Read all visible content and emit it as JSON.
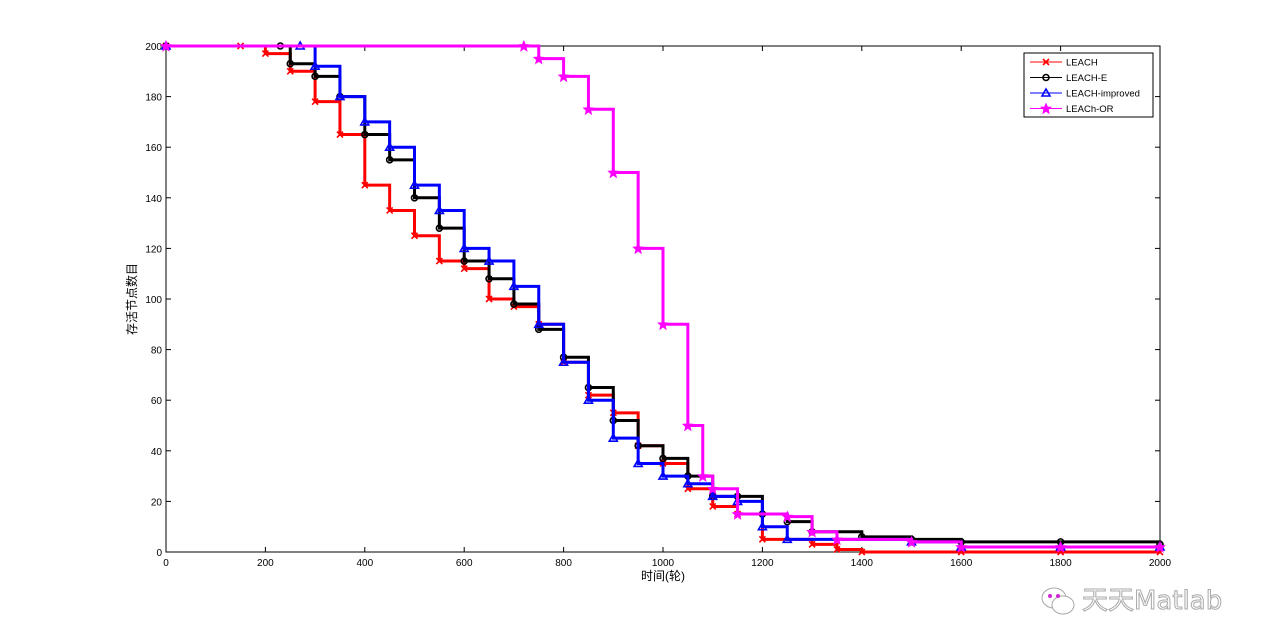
{
  "chart_data": {
    "type": "line",
    "title": "",
    "xlabel": "时间(轮)",
    "ylabel": "存活节点数目",
    "xlim": [
      0,
      2000
    ],
    "ylim": [
      0,
      200
    ],
    "xticks": [
      0,
      200,
      400,
      600,
      800,
      1000,
      1200,
      1400,
      1600,
      1800,
      2000
    ],
    "yticks": [
      0,
      20,
      40,
      60,
      80,
      100,
      120,
      140,
      160,
      180,
      200
    ],
    "legend_position": "top-right",
    "series": [
      {
        "name": "LEACH",
        "color": "#ff0000",
        "marker": "x",
        "x": [
          0,
          150,
          200,
          250,
          300,
          350,
          400,
          450,
          500,
          550,
          600,
          650,
          700,
          750,
          800,
          850,
          900,
          950,
          1000,
          1050,
          1100,
          1150,
          1200,
          1300,
          1350,
          1400,
          1600,
          1800,
          2000
        ],
        "y": [
          200,
          200,
          197,
          190,
          178,
          165,
          145,
          135,
          125,
          115,
          112,
          100,
          97,
          90,
          75,
          62,
          55,
          42,
          35,
          25,
          18,
          15,
          5,
          3,
          1,
          0,
          0,
          0,
          0
        ]
      },
      {
        "name": "LEACH-E",
        "color": "#000000",
        "marker": "o",
        "x": [
          0,
          230,
          250,
          300,
          350,
          400,
          450,
          500,
          550,
          600,
          650,
          700,
          750,
          800,
          850,
          900,
          950,
          1000,
          1050,
          1100,
          1150,
          1200,
          1250,
          1300,
          1400,
          1500,
          1600,
          1800,
          2000
        ],
        "y": [
          200,
          200,
          193,
          188,
          180,
          165,
          155,
          140,
          128,
          115,
          108,
          98,
          88,
          77,
          65,
          52,
          42,
          37,
          30,
          22,
          22,
          15,
          12,
          8,
          6,
          5,
          4,
          4,
          3
        ]
      },
      {
        "name": "LEACH-improved",
        "color": "#0000ff",
        "marker": "triangle",
        "x": [
          0,
          270,
          300,
          350,
          400,
          450,
          500,
          550,
          600,
          650,
          700,
          750,
          800,
          850,
          900,
          950,
          1000,
          1050,
          1100,
          1150,
          1200,
          1250,
          1500,
          1600,
          1800,
          2000
        ],
        "y": [
          200,
          200,
          192,
          180,
          170,
          160,
          145,
          135,
          120,
          115,
          105,
          90,
          75,
          60,
          45,
          35,
          30,
          27,
          22,
          20,
          10,
          5,
          4,
          2,
          2,
          2
        ]
      },
      {
        "name": "LEACh-OR",
        "color": "#ff00ff",
        "marker": "star",
        "x": [
          0,
          720,
          750,
          800,
          850,
          900,
          950,
          1000,
          1050,
          1080,
          1100,
          1150,
          1250,
          1300,
          1350,
          1500,
          1600,
          1800,
          2000
        ],
        "y": [
          200,
          200,
          195,
          188,
          175,
          150,
          120,
          90,
          50,
          30,
          25,
          15,
          14,
          8,
          5,
          4,
          2,
          2,
          2
        ]
      }
    ]
  },
  "watermark": "天天Matlab"
}
